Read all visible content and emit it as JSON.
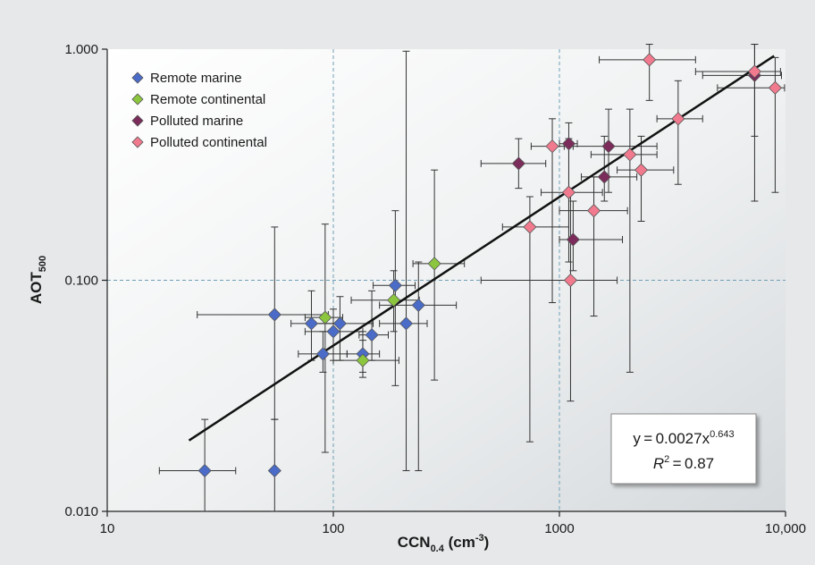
{
  "chart_data": {
    "type": "scatter",
    "xscale": "log",
    "yscale": "log",
    "xlim": [
      10,
      10000
    ],
    "ylim": [
      0.01,
      1
    ],
    "xticks": [
      "10",
      "100",
      "1000",
      "10,000"
    ],
    "yticks": [
      "0.010",
      "0.100",
      "1.000"
    ],
    "xlabel": {
      "main": "CCN",
      "sub": "0.4",
      "unit": " (cm",
      "sup": "-3",
      "close": ")"
    },
    "ylabel": {
      "main": "AOT",
      "sub": "500"
    },
    "grid": "dashed at 100, 1000 and 0.100",
    "legend_position": "top-left",
    "series": [
      {
        "name": "Remote marine",
        "color": "#4a6cc8",
        "points": [
          {
            "x": 27,
            "y": 0.015,
            "xlo": 17,
            "xhi": 37,
            "ylo": 0.01,
            "yhi": 0.025
          },
          {
            "x": 55,
            "y": 0.015,
            "xlo": 55,
            "xhi": 55,
            "ylo": 0.01,
            "yhi": 0.025
          },
          {
            "x": 55,
            "y": 0.071,
            "xlo": 25,
            "xhi": 95,
            "ylo": 0.025,
            "yhi": 0.17
          },
          {
            "x": 80,
            "y": 0.065,
            "xlo": 65,
            "xhi": 105,
            "ylo": 0.045,
            "yhi": 0.09
          },
          {
            "x": 90,
            "y": 0.048,
            "xlo": 70,
            "xhi": 115,
            "ylo": 0.04,
            "yhi": 0.06
          },
          {
            "x": 100,
            "y": 0.06,
            "xlo": 75,
            "xhi": 135,
            "ylo": 0.045,
            "yhi": 0.075
          },
          {
            "x": 107,
            "y": 0.065,
            "xlo": 80,
            "xhi": 150,
            "ylo": 0.045,
            "yhi": 0.085
          },
          {
            "x": 135,
            "y": 0.048,
            "xlo": 115,
            "xhi": 160,
            "ylo": 0.04,
            "yhi": 0.06
          },
          {
            "x": 148,
            "y": 0.058,
            "xlo": 130,
            "xhi": 175,
            "ylo": 0.045,
            "yhi": 0.09
          },
          {
            "x": 188,
            "y": 0.095,
            "xlo": 150,
            "xhi": 230,
            "ylo": 0.035,
            "yhi": 0.2
          },
          {
            "x": 210,
            "y": 0.065,
            "xlo": 160,
            "xhi": 260,
            "ylo": 0.015,
            "yhi": 0.98
          },
          {
            "x": 238,
            "y": 0.078,
            "xlo": 160,
            "xhi": 350,
            "ylo": 0.015,
            "yhi": 0.12
          }
        ]
      },
      {
        "name": "Remote continental",
        "color": "#8cc63f",
        "points": [
          {
            "x": 92,
            "y": 0.069,
            "xlo": 75,
            "xhi": 110,
            "ylo": 0.018,
            "yhi": 0.175
          },
          {
            "x": 135,
            "y": 0.045,
            "xlo": 100,
            "xhi": 195,
            "ylo": 0.038,
            "yhi": 0.055
          },
          {
            "x": 185,
            "y": 0.082,
            "xlo": 120,
            "xhi": 240,
            "ylo": 0.06,
            "yhi": 0.11
          },
          {
            "x": 280,
            "y": 0.118,
            "xlo": 225,
            "xhi": 380,
            "ylo": 0.037,
            "yhi": 0.3
          }
        ]
      },
      {
        "name": "Polluted marine",
        "color": "#7b2c5a",
        "points": [
          {
            "x": 660,
            "y": 0.32,
            "xlo": 450,
            "xhi": 870,
            "ylo": 0.25,
            "yhi": 0.41
          },
          {
            "x": 1100,
            "y": 0.39,
            "xlo": 1000,
            "xhi": 1200,
            "ylo": 0.15,
            "yhi": 0.48
          },
          {
            "x": 1150,
            "y": 0.15,
            "xlo": 1000,
            "xhi": 1900,
            "ylo": 0.11,
            "yhi": 0.22
          },
          {
            "x": 1580,
            "y": 0.28,
            "xlo": 1250,
            "xhi": 2200,
            "ylo": 0.22,
            "yhi": 0.42
          },
          {
            "x": 1650,
            "y": 0.38,
            "xlo": 1050,
            "xhi": 2700,
            "ylo": 0.24,
            "yhi": 0.55
          },
          {
            "x": 7300,
            "y": 0.77,
            "xlo": 4300,
            "xhi": 9600,
            "ylo": 0.42,
            "yhi": 1.05
          }
        ]
      },
      {
        "name": "Polluted continental",
        "color": "#f27a8e",
        "points": [
          {
            "x": 740,
            "y": 0.17,
            "xlo": 560,
            "xhi": 1100,
            "ylo": 0.02,
            "yhi": 0.23
          },
          {
            "x": 930,
            "y": 0.38,
            "xlo": 750,
            "xhi": 1150,
            "ylo": 0.08,
            "yhi": 0.5
          },
          {
            "x": 1100,
            "y": 0.24,
            "xlo": 830,
            "xhi": 1550,
            "ylo": 0.12,
            "yhi": 0.41
          },
          {
            "x": 1120,
            "y": 0.1,
            "xlo": 450,
            "xhi": 1800,
            "ylo": 0.03,
            "yhi": 0.24
          },
          {
            "x": 1420,
            "y": 0.2,
            "xlo": 1000,
            "xhi": 2000,
            "ylo": 0.07,
            "yhi": 0.28
          },
          {
            "x": 2050,
            "y": 0.35,
            "xlo": 1380,
            "xhi": 2700,
            "ylo": 0.04,
            "yhi": 0.55
          },
          {
            "x": 2300,
            "y": 0.3,
            "xlo": 1800,
            "xhi": 3200,
            "ylo": 0.18,
            "yhi": 0.42
          },
          {
            "x": 2500,
            "y": 0.9,
            "xlo": 1500,
            "xhi": 4000,
            "ylo": 0.6,
            "yhi": 1.05
          },
          {
            "x": 3350,
            "y": 0.5,
            "xlo": 2700,
            "xhi": 4300,
            "ylo": 0.26,
            "yhi": 0.73
          },
          {
            "x": 7300,
            "y": 0.8,
            "xlo": 4000,
            "xhi": 9500,
            "ylo": 0.22,
            "yhi": 1.05
          },
          {
            "x": 9000,
            "y": 0.68,
            "xlo": 5000,
            "xhi": 9900,
            "ylo": 0.24,
            "yhi": 0.92
          }
        ]
      }
    ],
    "fit": {
      "coef": 0.0027,
      "exp": 0.643,
      "x_from": 23,
      "x_to": 8900
    },
    "annotation": {
      "line1": "y = 0.0027x",
      "line1_sup": "0.643",
      "line2_pre": "R",
      "line2_sup": "2",
      "line2_post": " = 0.87"
    }
  }
}
